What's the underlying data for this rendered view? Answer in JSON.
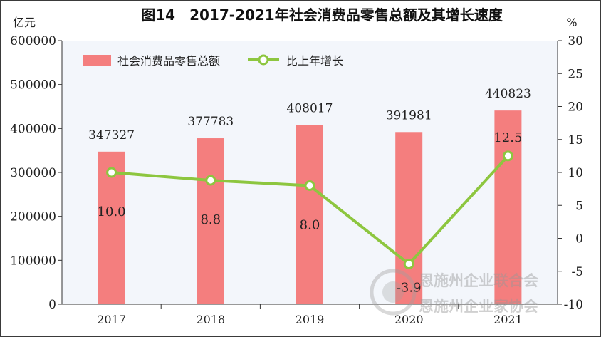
{
  "chart_data": {
    "type": "bar+line",
    "title": "图14　2017-2021年社会消费品零售总额及其增长速度",
    "categories": [
      "2017",
      "2018",
      "2019",
      "2020",
      "2021"
    ],
    "y_left": {
      "unit": "亿元",
      "min": 0,
      "max": 600000,
      "ticks": [
        "0",
        "100000",
        "200000",
        "300000",
        "400000",
        "500000",
        "600000"
      ]
    },
    "y_right": {
      "unit": "%",
      "min": -10,
      "max": 30,
      "ticks": [
        "-10",
        "-5",
        "0",
        "5",
        "10",
        "15",
        "20",
        "25",
        "30"
      ]
    },
    "series": [
      {
        "name": "社会消费品零售总额",
        "type": "bar",
        "axis": "left",
        "color": "#f47e7e",
        "values": [
          347327,
          377783,
          408017,
          391981,
          440823
        ],
        "labels": [
          "347327",
          "377783",
          "408017",
          "391981",
          "440823"
        ]
      },
      {
        "name": "比上年增长",
        "type": "line",
        "axis": "right",
        "color": "#8dc63f",
        "values": [
          10.0,
          8.8,
          8.0,
          -3.9,
          12.5
        ],
        "labels": [
          "10.0",
          "8.8",
          "8.0",
          "-3.9",
          "12.5"
        ]
      }
    ],
    "legend_position": "top-left",
    "grid": false
  },
  "watermark": {
    "lines": [
      "恩施州企业联合会",
      "恩施州企业家协会"
    ]
  }
}
